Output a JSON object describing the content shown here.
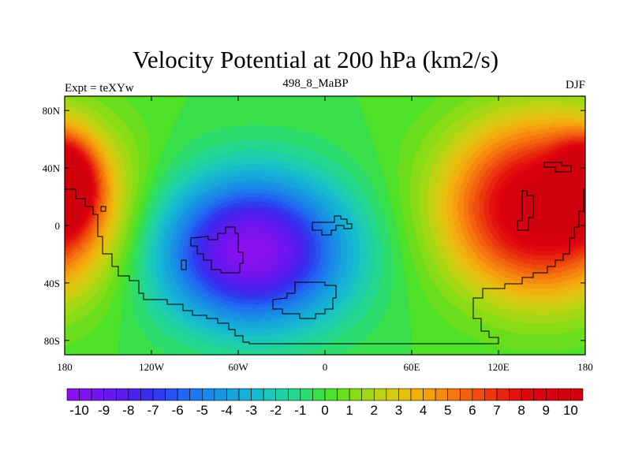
{
  "chart_data": {
    "type": "heatmap",
    "title": "Velocity Potential at 200 hPa (km2/s)",
    "left_string": "Expt = teXYw",
    "center_string": "498_8_MaBP",
    "right_string": "DJF",
    "x_range": [
      -180,
      180
    ],
    "y_range": [
      -90,
      90
    ],
    "x_ticks": [
      {
        "value": -180,
        "label": "180"
      },
      {
        "value": -120,
        "label": "120W"
      },
      {
        "value": -60,
        "label": "60W"
      },
      {
        "value": 0,
        "label": "0"
      },
      {
        "value": 60,
        "label": "60E"
      },
      {
        "value": 120,
        "label": "120E"
      },
      {
        "value": 180,
        "label": "180"
      }
    ],
    "y_ticks": [
      {
        "value": 80,
        "label": "80N"
      },
      {
        "value": 40,
        "label": "40N"
      },
      {
        "value": 0,
        "label": "0"
      },
      {
        "value": -40,
        "label": "40S"
      },
      {
        "value": -80,
        "label": "80S"
      }
    ],
    "colorbar": {
      "min": -10.5,
      "max": 10.5,
      "step": 0.5,
      "labels": [
        "-10",
        "-9",
        "-8",
        "-7",
        "-6",
        "-5",
        "-4",
        "-3",
        "-2",
        "-1",
        "0",
        "1",
        "2",
        "3",
        "4",
        "5",
        "6",
        "7",
        "8",
        "9",
        "10"
      ],
      "colors": [
        "#8a10f0",
        "#7f12f0",
        "#7215ef",
        "#6519ee",
        "#581ded",
        "#4923ec",
        "#3a2ded",
        "#2f3cf0",
        "#2851f2",
        "#2266f2",
        "#1d78ee",
        "#1a88e8",
        "#1895e2",
        "#17a3dc",
        "#16afd6",
        "#18bbcd",
        "#1cc6bd",
        "#20cfa8",
        "#25d68e",
        "#2cdc6e",
        "#38df4a",
        "#4ee12a",
        "#6ade1c",
        "#88dc16",
        "#a2d814",
        "#bcd212",
        "#d4cb10",
        "#e6c00e",
        "#f0b00e",
        "#f59e0e",
        "#f68a0e",
        "#f5760e",
        "#f3610e",
        "#f04c0e",
        "#ec380e",
        "#e8240e",
        "#e4120e",
        "#e0060e",
        "#dc000e",
        "#d8000e",
        "#d4000e",
        "#d0000e"
      ]
    },
    "field_centers": [
      {
        "lon": -50,
        "lat": -20,
        "value": -10.5,
        "spread_lon": 45,
        "spread_lat": 38
      },
      {
        "lon": 150,
        "lat": 15,
        "value": 10.5,
        "spread_lon": 45,
        "spread_lat": 45
      },
      {
        "lon": -180,
        "lat": 30,
        "value": 9,
        "spread_lon": 14,
        "spread_lat": 20
      }
    ]
  }
}
